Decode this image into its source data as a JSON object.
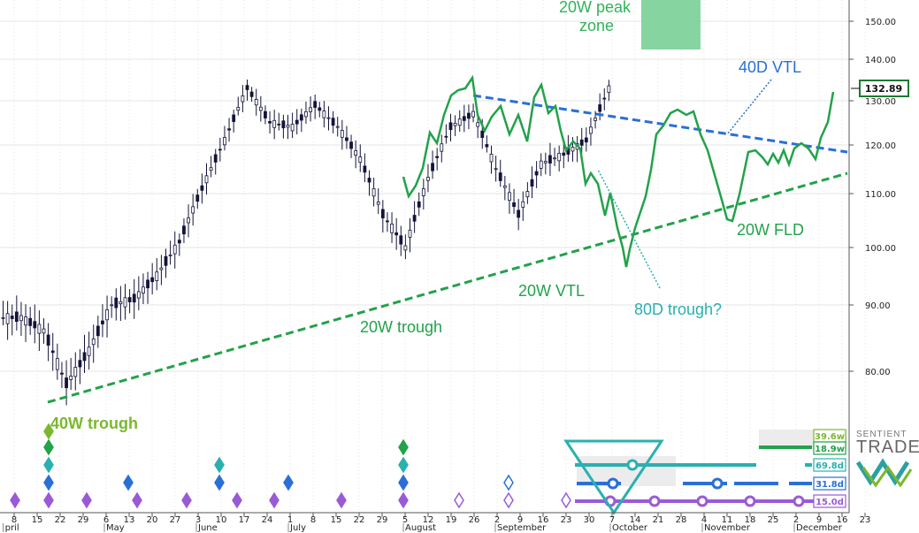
{
  "chart_data": {
    "type": "candlestick",
    "last_price": "132.89",
    "y_scale": "log",
    "ylim": [
      75,
      155
    ],
    "y_ticks": [
      "150.00",
      "140.00",
      "130.00",
      "120.00",
      "110.00",
      "100.00",
      "90.00",
      "80.00"
    ],
    "x_ticks": [
      "8",
      "15",
      "22",
      "29",
      "6",
      "13",
      "20",
      "27",
      "3",
      "10",
      "17",
      "24",
      "1",
      "8",
      "15",
      "22",
      "29",
      "5",
      "12",
      "19",
      "26",
      "2",
      "9",
      "16",
      "23",
      "30",
      "7",
      "14",
      "21",
      "28",
      "4",
      "11",
      "18",
      "25",
      "2",
      "9",
      "16",
      "23"
    ],
    "months": [
      "pril",
      "May",
      "June",
      "July",
      "August",
      "September",
      "October",
      "November",
      "December"
    ],
    "annotations": [
      {
        "text": "20W peak\nzone",
        "color": "#2fb35a"
      },
      {
        "text": "40D VTL",
        "color": "#2a6fd6"
      },
      {
        "text": "20W FLD",
        "color": "#22a24a"
      },
      {
        "text": "20W trough",
        "color": "#22a24a"
      },
      {
        "text": "20W VTL",
        "color": "#22a24a"
      },
      {
        "text": "80D trough?",
        "color": "#2ab0b0"
      },
      {
        "text": "40W trough",
        "color": "#7ab82e"
      }
    ],
    "cycle_labels": [
      {
        "text": "39.6w",
        "color": "#7ab82e"
      },
      {
        "text": "18.9w",
        "color": "#22a24a"
      },
      {
        "text": "69.8d",
        "color": "#2ab0b0"
      },
      {
        "text": "31.8d",
        "color": "#2a6fd6"
      },
      {
        "text": "15.0d",
        "color": "#9a5ad6"
      }
    ],
    "candles_weekly_close": [
      {
        "week": "Apr 8",
        "close": 88
      },
      {
        "week": "Apr 15",
        "close": 86
      },
      {
        "week": "Apr 22",
        "close": 78
      },
      {
        "week": "Apr 29",
        "close": 83
      },
      {
        "week": "May 6",
        "close": 90
      },
      {
        "week": "May 13",
        "close": 91
      },
      {
        "week": "May 20",
        "close": 95
      },
      {
        "week": "May 27",
        "close": 101
      },
      {
        "week": "Jun 3",
        "close": 111
      },
      {
        "week": "Jun 10",
        "close": 121
      },
      {
        "week": "Jun 17",
        "close": 133
      },
      {
        "week": "Jun 24",
        "close": 125
      },
      {
        "week": "Jul 1",
        "close": 124
      },
      {
        "week": "Jul 8",
        "close": 129
      },
      {
        "week": "Jul 15",
        "close": 124
      },
      {
        "week": "Jul 22",
        "close": 117
      },
      {
        "week": "Jul 29",
        "close": 106
      },
      {
        "week": "Aug 5",
        "close": 100
      },
      {
        "week": "Aug 12",
        "close": 113
      },
      {
        "week": "Aug 19",
        "close": 124
      },
      {
        "week": "Aug 26",
        "close": 127
      },
      {
        "week": "Sep 2",
        "close": 115
      },
      {
        "week": "Sep 9",
        "close": 106
      },
      {
        "week": "Sep 16",
        "close": 116
      },
      {
        "week": "Sep 23",
        "close": 118
      },
      {
        "week": "Sep 30",
        "close": 121
      },
      {
        "week": "Oct 7",
        "close": 132.89
      }
    ]
  }
}
